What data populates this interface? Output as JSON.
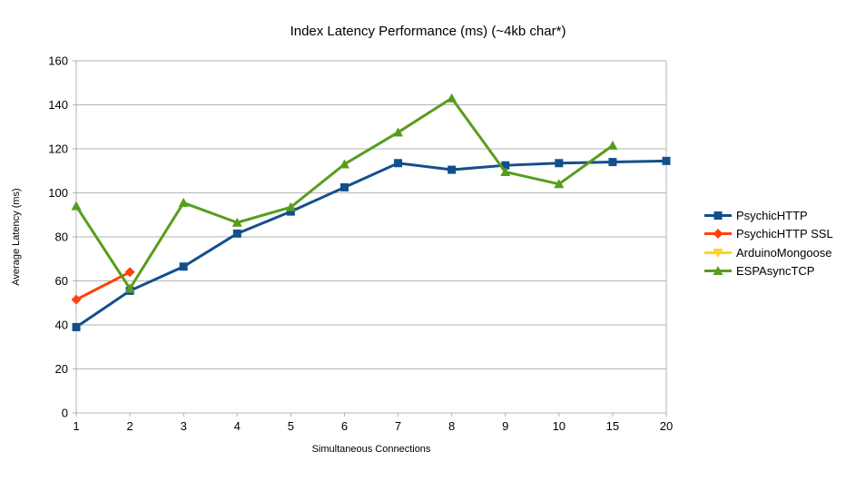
{
  "chart_data": {
    "type": "line",
    "title": "Index Latency Performance (ms) (~4kb char*)",
    "xlabel": "Simultaneous Connections",
    "ylabel": "Average Latency (ms)",
    "categories": [
      "1",
      "2",
      "3",
      "4",
      "5",
      "6",
      "7",
      "8",
      "9",
      "10",
      "15",
      "20"
    ],
    "y_ticks": [
      0,
      20,
      40,
      60,
      80,
      100,
      120,
      140,
      160
    ],
    "ylim": [
      0,
      160
    ],
    "grid": true,
    "legend_position": "right",
    "colors": {
      "grid": "#b3b3b3",
      "axis": "#b3b3b3",
      "background": "#ffffff"
    },
    "series": [
      {
        "name": "PsychicHTTP",
        "color": "#134F8C",
        "marker": "square",
        "values": [
          39,
          55.5,
          66.5,
          81.5,
          91.5,
          102.5,
          113.5,
          110.5,
          112.5,
          113.5,
          114,
          114.5
        ]
      },
      {
        "name": "PsychicHTTP SSL",
        "color": "#FF420E",
        "marker": "diamond",
        "values": [
          51.5,
          64,
          null,
          null,
          null,
          null,
          null,
          null,
          null,
          null,
          null,
          null
        ]
      },
      {
        "name": "ArduinoMongoose",
        "color": "#FFD320",
        "marker": "triangle-down",
        "values": [
          null,
          null,
          null,
          null,
          null,
          null,
          null,
          null,
          null,
          null,
          null,
          null
        ]
      },
      {
        "name": "ESPAsyncTCP",
        "color": "#579D1C",
        "marker": "triangle-up",
        "values": [
          94,
          56.5,
          95.5,
          86.5,
          93.5,
          113,
          127.5,
          143,
          109.5,
          104,
          121.5,
          null
        ]
      }
    ]
  }
}
